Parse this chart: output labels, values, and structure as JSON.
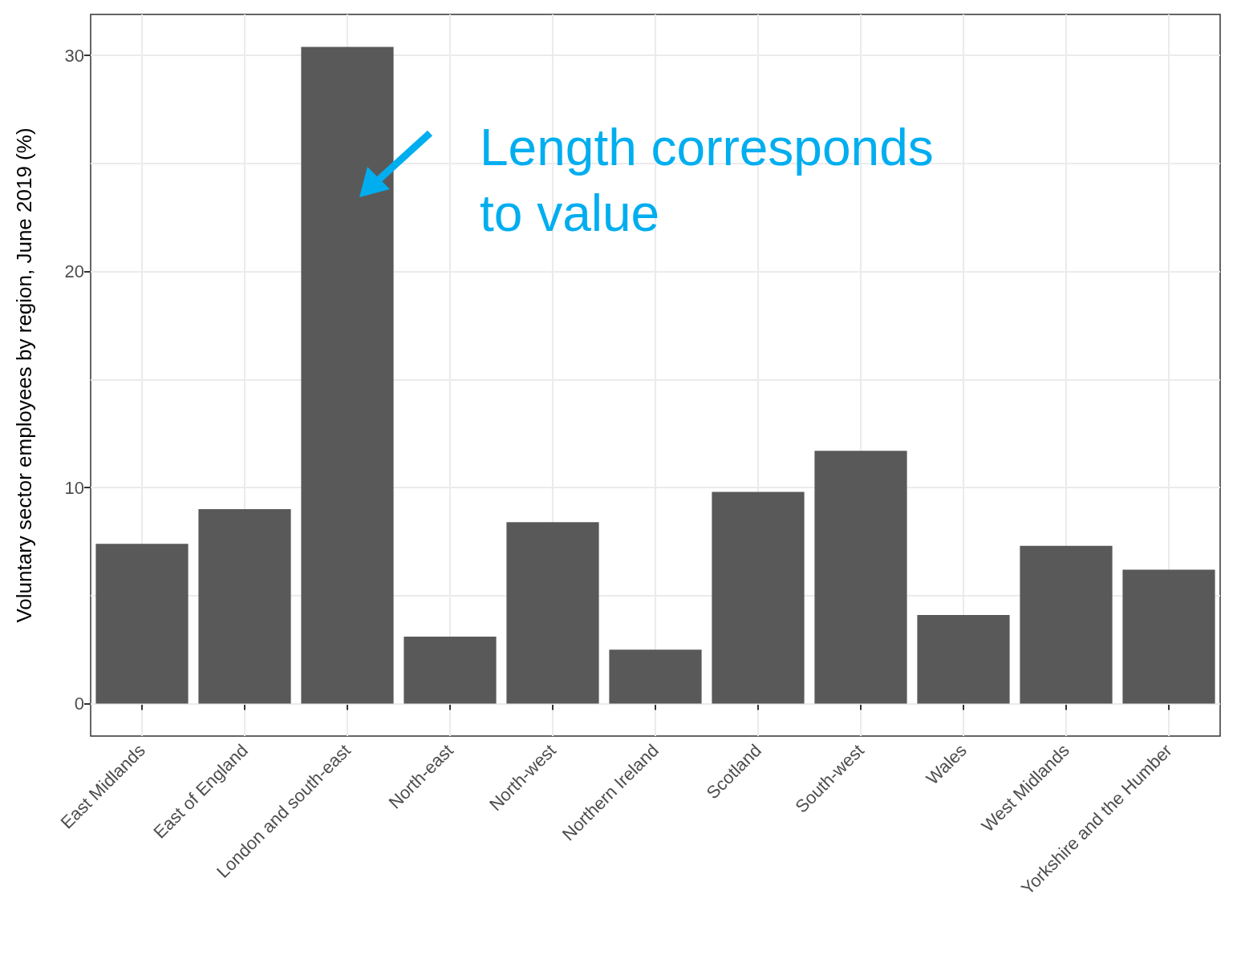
{
  "chart_data": {
    "type": "bar",
    "ylabel": "Voluntary sector employees by region, June 2019 (%)",
    "categories": [
      "East Midlands",
      "East of England",
      "London and south-east",
      "North-east",
      "North-west",
      "Northern Ireland",
      "Scotland",
      "South-west",
      "Wales",
      "West Midlands",
      "Yorkshire and the Humber"
    ],
    "values": [
      7.4,
      9.0,
      30.4,
      3.1,
      8.4,
      2.5,
      9.8,
      11.7,
      4.1,
      7.3,
      6.2
    ],
    "color": "#595959",
    "ylim": [
      -1.5,
      31.9
    ],
    "yticks": [
      0,
      {
        "value": 5,
        "label": null
      },
      10,
      {
        "value": 15,
        "label": null
      },
      20,
      {
        "value": 25,
        "label": null
      },
      30
    ],
    "grid": true,
    "annotations": [
      "Length corresponds to value"
    ]
  }
}
